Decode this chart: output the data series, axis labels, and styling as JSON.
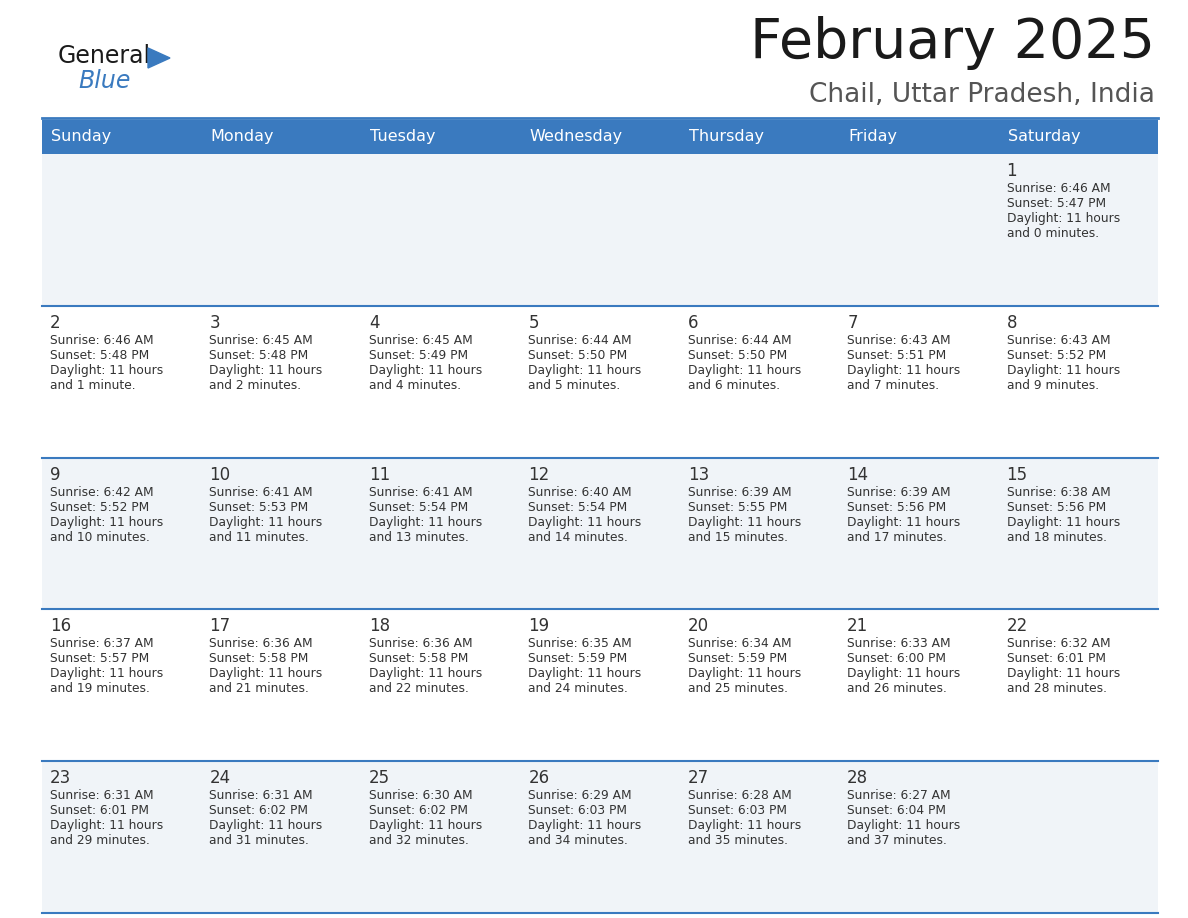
{
  "title": "February 2025",
  "subtitle": "Chail, Uttar Pradesh, India",
  "header_bg": "#3a7abf",
  "header_text": "#ffffff",
  "row0_bg": "#f0f4f8",
  "row1_bg": "#ffffff",
  "row2_bg": "#f0f4f8",
  "row3_bg": "#ffffff",
  "row4_bg": "#f0f4f8",
  "separator_color": "#3a7abf",
  "text_color": "#333333",
  "day_headers": [
    "Sunday",
    "Monday",
    "Tuesday",
    "Wednesday",
    "Thursday",
    "Friday",
    "Saturday"
  ],
  "calendar_data": [
    [
      null,
      null,
      null,
      null,
      null,
      null,
      {
        "day": "1",
        "sunrise": "6:46 AM",
        "sunset": "5:47 PM",
        "daylight_h": "11 hours",
        "daylight_m": "and 0 minutes."
      }
    ],
    [
      {
        "day": "2",
        "sunrise": "6:46 AM",
        "sunset": "5:48 PM",
        "daylight_h": "11 hours",
        "daylight_m": "and 1 minute."
      },
      {
        "day": "3",
        "sunrise": "6:45 AM",
        "sunset": "5:48 PM",
        "daylight_h": "11 hours",
        "daylight_m": "and 2 minutes."
      },
      {
        "day": "4",
        "sunrise": "6:45 AM",
        "sunset": "5:49 PM",
        "daylight_h": "11 hours",
        "daylight_m": "and 4 minutes."
      },
      {
        "day": "5",
        "sunrise": "6:44 AM",
        "sunset": "5:50 PM",
        "daylight_h": "11 hours",
        "daylight_m": "and 5 minutes."
      },
      {
        "day": "6",
        "sunrise": "6:44 AM",
        "sunset": "5:50 PM",
        "daylight_h": "11 hours",
        "daylight_m": "and 6 minutes."
      },
      {
        "day": "7",
        "sunrise": "6:43 AM",
        "sunset": "5:51 PM",
        "daylight_h": "11 hours",
        "daylight_m": "and 7 minutes."
      },
      {
        "day": "8",
        "sunrise": "6:43 AM",
        "sunset": "5:52 PM",
        "daylight_h": "11 hours",
        "daylight_m": "and 9 minutes."
      }
    ],
    [
      {
        "day": "9",
        "sunrise": "6:42 AM",
        "sunset": "5:52 PM",
        "daylight_h": "11 hours",
        "daylight_m": "and 10 minutes."
      },
      {
        "day": "10",
        "sunrise": "6:41 AM",
        "sunset": "5:53 PM",
        "daylight_h": "11 hours",
        "daylight_m": "and 11 minutes."
      },
      {
        "day": "11",
        "sunrise": "6:41 AM",
        "sunset": "5:54 PM",
        "daylight_h": "11 hours",
        "daylight_m": "and 13 minutes."
      },
      {
        "day": "12",
        "sunrise": "6:40 AM",
        "sunset": "5:54 PM",
        "daylight_h": "11 hours",
        "daylight_m": "and 14 minutes."
      },
      {
        "day": "13",
        "sunrise": "6:39 AM",
        "sunset": "5:55 PM",
        "daylight_h": "11 hours",
        "daylight_m": "and 15 minutes."
      },
      {
        "day": "14",
        "sunrise": "6:39 AM",
        "sunset": "5:56 PM",
        "daylight_h": "11 hours",
        "daylight_m": "and 17 minutes."
      },
      {
        "day": "15",
        "sunrise": "6:38 AM",
        "sunset": "5:56 PM",
        "daylight_h": "11 hours",
        "daylight_m": "and 18 minutes."
      }
    ],
    [
      {
        "day": "16",
        "sunrise": "6:37 AM",
        "sunset": "5:57 PM",
        "daylight_h": "11 hours",
        "daylight_m": "and 19 minutes."
      },
      {
        "day": "17",
        "sunrise": "6:36 AM",
        "sunset": "5:58 PM",
        "daylight_h": "11 hours",
        "daylight_m": "and 21 minutes."
      },
      {
        "day": "18",
        "sunrise": "6:36 AM",
        "sunset": "5:58 PM",
        "daylight_h": "11 hours",
        "daylight_m": "and 22 minutes."
      },
      {
        "day": "19",
        "sunrise": "6:35 AM",
        "sunset": "5:59 PM",
        "daylight_h": "11 hours",
        "daylight_m": "and 24 minutes."
      },
      {
        "day": "20",
        "sunrise": "6:34 AM",
        "sunset": "5:59 PM",
        "daylight_h": "11 hours",
        "daylight_m": "and 25 minutes."
      },
      {
        "day": "21",
        "sunrise": "6:33 AM",
        "sunset": "6:00 PM",
        "daylight_h": "11 hours",
        "daylight_m": "and 26 minutes."
      },
      {
        "day": "22",
        "sunrise": "6:32 AM",
        "sunset": "6:01 PM",
        "daylight_h": "11 hours",
        "daylight_m": "and 28 minutes."
      }
    ],
    [
      {
        "day": "23",
        "sunrise": "6:31 AM",
        "sunset": "6:01 PM",
        "daylight_h": "11 hours",
        "daylight_m": "and 29 minutes."
      },
      {
        "day": "24",
        "sunrise": "6:31 AM",
        "sunset": "6:02 PM",
        "daylight_h": "11 hours",
        "daylight_m": "and 31 minutes."
      },
      {
        "day": "25",
        "sunrise": "6:30 AM",
        "sunset": "6:02 PM",
        "daylight_h": "11 hours",
        "daylight_m": "and 32 minutes."
      },
      {
        "day": "26",
        "sunrise": "6:29 AM",
        "sunset": "6:03 PM",
        "daylight_h": "11 hours",
        "daylight_m": "and 34 minutes."
      },
      {
        "day": "27",
        "sunrise": "6:28 AM",
        "sunset": "6:03 PM",
        "daylight_h": "11 hours",
        "daylight_m": "and 35 minutes."
      },
      {
        "day": "28",
        "sunrise": "6:27 AM",
        "sunset": "6:04 PM",
        "daylight_h": "11 hours",
        "daylight_m": "and 37 minutes."
      },
      null
    ]
  ]
}
